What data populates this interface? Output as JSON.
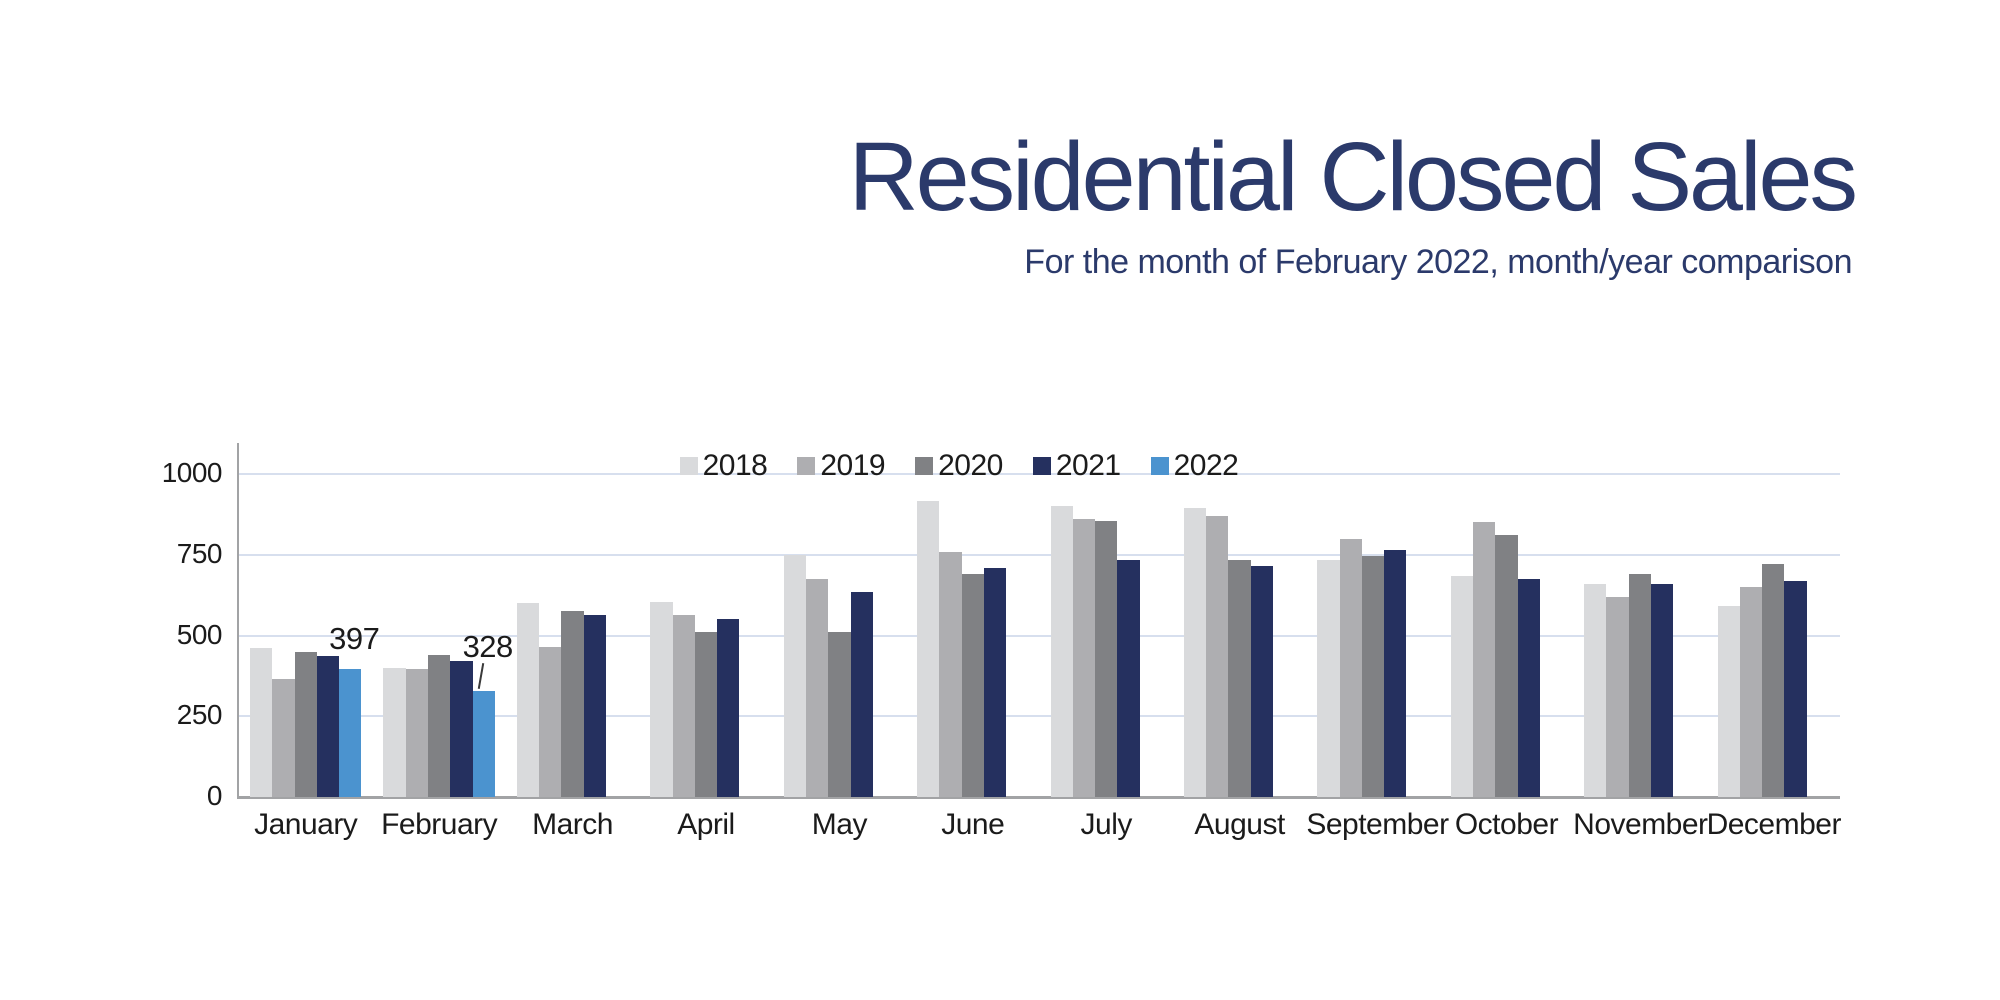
{
  "header": {
    "title": "Residential Closed Sales",
    "subtitle": "For the month of February 2022, month/year comparison"
  },
  "chart_data": {
    "type": "bar",
    "title": "Residential Closed Sales",
    "subtitle": "For the month of February 2022, month/year comparison",
    "categories": [
      "January",
      "February",
      "March",
      "April",
      "May",
      "June",
      "July",
      "August",
      "September",
      "October",
      "November",
      "December"
    ],
    "series": [
      {
        "name": "2018",
        "color": "#D9DADC",
        "values": [
          460,
          400,
          600,
          605,
          750,
          915,
          900,
          895,
          735,
          685,
          660,
          590
        ]
      },
      {
        "name": "2019",
        "color": "#AEAEB1",
        "values": [
          365,
          395,
          465,
          565,
          675,
          760,
          860,
          870,
          800,
          850,
          620,
          650
        ]
      },
      {
        "name": "2020",
        "color": "#808184",
        "values": [
          450,
          440,
          575,
          510,
          510,
          690,
          855,
          735,
          745,
          810,
          690,
          720
        ]
      },
      {
        "name": "2021",
        "color": "#25305F",
        "values": [
          435,
          420,
          565,
          550,
          635,
          710,
          735,
          715,
          765,
          675,
          660,
          670
        ]
      },
      {
        "name": "2022",
        "color": "#4B93CF",
        "values": [
          397,
          328,
          null,
          null,
          null,
          null,
          null,
          null,
          null,
          null,
          null,
          null
        ]
      }
    ],
    "data_labels": [
      {
        "series": "2022",
        "category": "January",
        "text": "397",
        "leader": false
      },
      {
        "series": "2022",
        "category": "February",
        "text": "328",
        "leader": true
      }
    ],
    "ylim": [
      0,
      1000
    ],
    "yticks": [
      0,
      250,
      500,
      750,
      1000
    ],
    "grid": "horizontal",
    "legend_position": "top-center",
    "style": {
      "title_color": "#2B3A6B",
      "subtitle_color": "#2B3A6B",
      "gridline_color": "#D7DFEE",
      "axis_line_color": "#A2A3A5",
      "text_color": "#1B1B1B",
      "background": "#FFFFFF"
    }
  }
}
